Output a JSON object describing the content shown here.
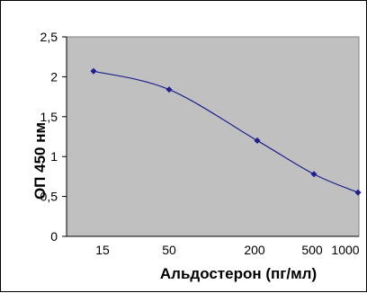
{
  "chart_data": {
    "type": "line",
    "title": "",
    "xlabel": "Альдостерон (пг/мл)",
    "ylabel": "ОП 450 нм",
    "x": [
      15,
      50,
      200,
      500,
      1000
    ],
    "x_tick_labels": [
      "15",
      "50",
      "200",
      "500",
      "1000"
    ],
    "y_tick_labels": [
      "0",
      "0,5",
      "1",
      "1,5",
      "2",
      "2,5"
    ],
    "ylim": [
      0,
      2.5
    ],
    "grid": false,
    "plot_background": "#c0c0c0",
    "series": [
      {
        "name": "",
        "color": "#1f1f8f",
        "values": [
          2.07,
          1.84,
          1.2,
          0.78,
          0.55
        ]
      }
    ]
  }
}
